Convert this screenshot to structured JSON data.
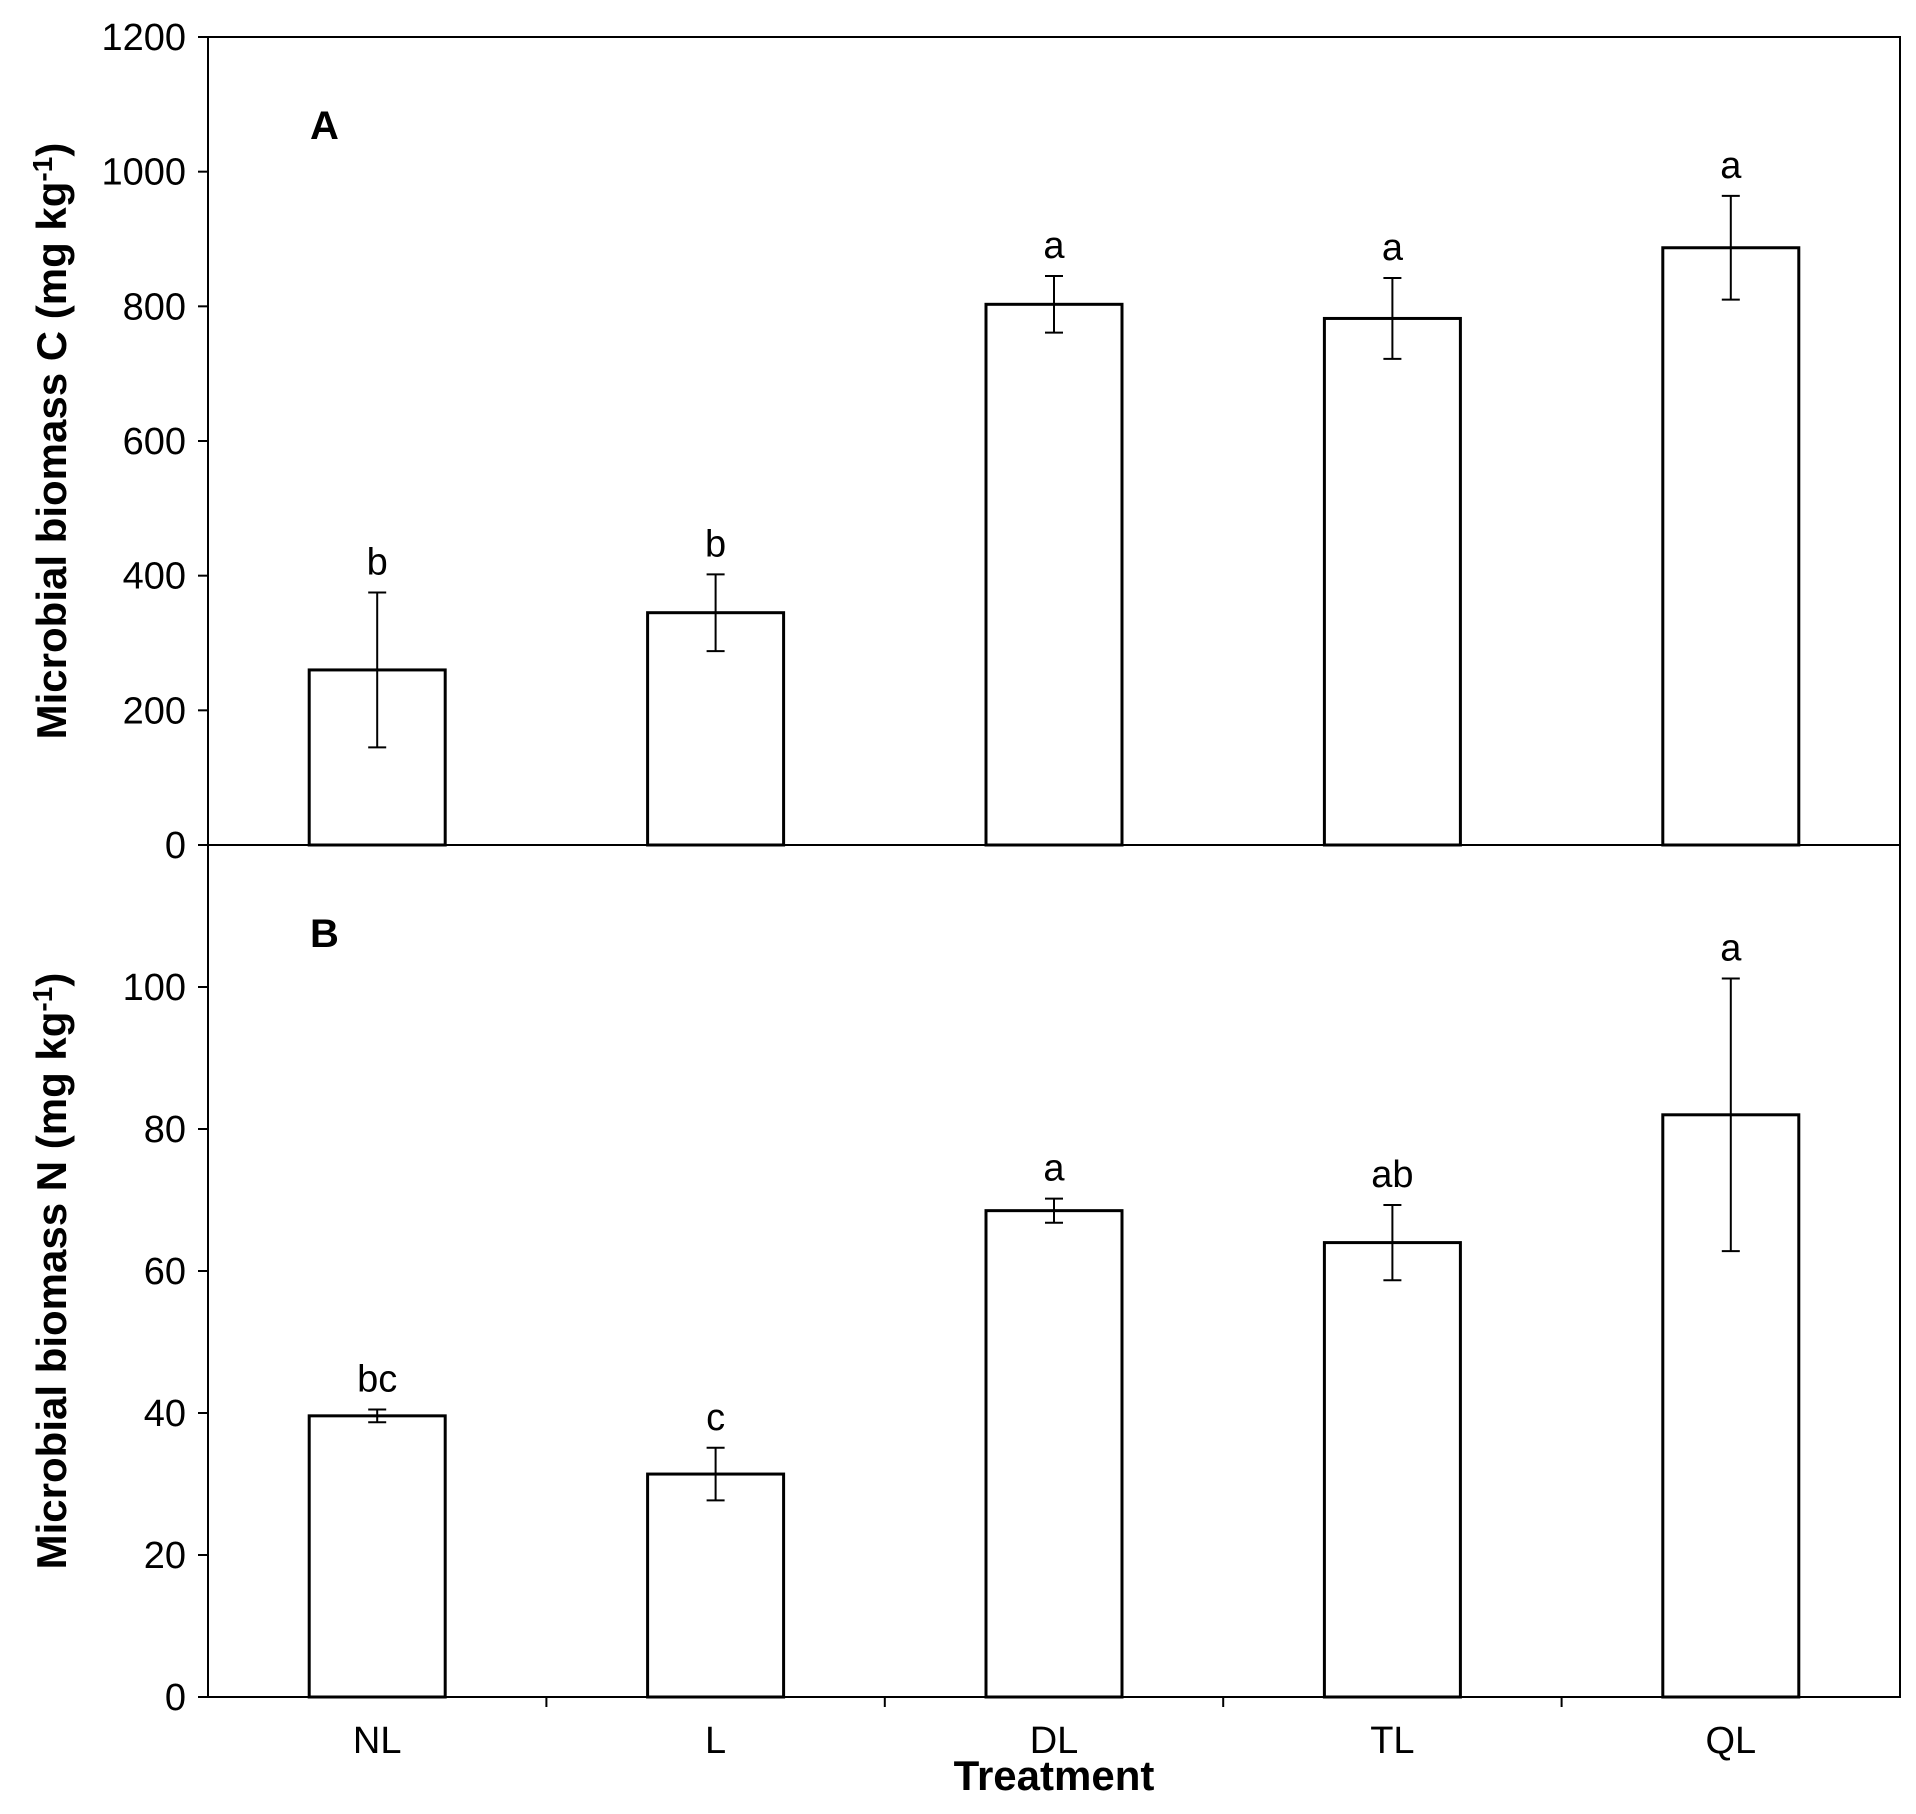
{
  "chart_data": [
    {
      "type": "bar",
      "panel_label": "A",
      "ylabel": "Microbial biomass C (mg kg",
      "ylabel_sup": "-1",
      "ylabel_tail": ")",
      "ylim": [
        0,
        1200
      ],
      "yticks": [
        0,
        200,
        400,
        600,
        800,
        1000,
        1200
      ],
      "categories": [
        "NL",
        "L",
        "DL",
        "TL",
        "QL"
      ],
      "values": [
        260,
        345,
        803,
        782,
        887
      ],
      "errors": [
        115,
        57,
        42,
        60,
        77
      ],
      "significance": [
        "b",
        "b",
        "a",
        "a",
        "a"
      ]
    },
    {
      "type": "bar",
      "panel_label": "B",
      "ylabel": "Microbial biomass N (mg kg",
      "ylabel_sup": "-1",
      "ylabel_tail": ")",
      "ylim": [
        0,
        120
      ],
      "yticks": [
        0,
        20,
        40,
        60,
        80,
        100
      ],
      "categories": [
        "NL",
        "L",
        "DL",
        "TL",
        "QL"
      ],
      "values": [
        39.6,
        31.4,
        68.5,
        64.0,
        82.0
      ],
      "errors": [
        0.9,
        3.7,
        1.7,
        5.3,
        19.2
      ],
      "significance": [
        "bc",
        "c",
        "a",
        "ab",
        "a"
      ],
      "xlabel": "Treatment"
    }
  ]
}
